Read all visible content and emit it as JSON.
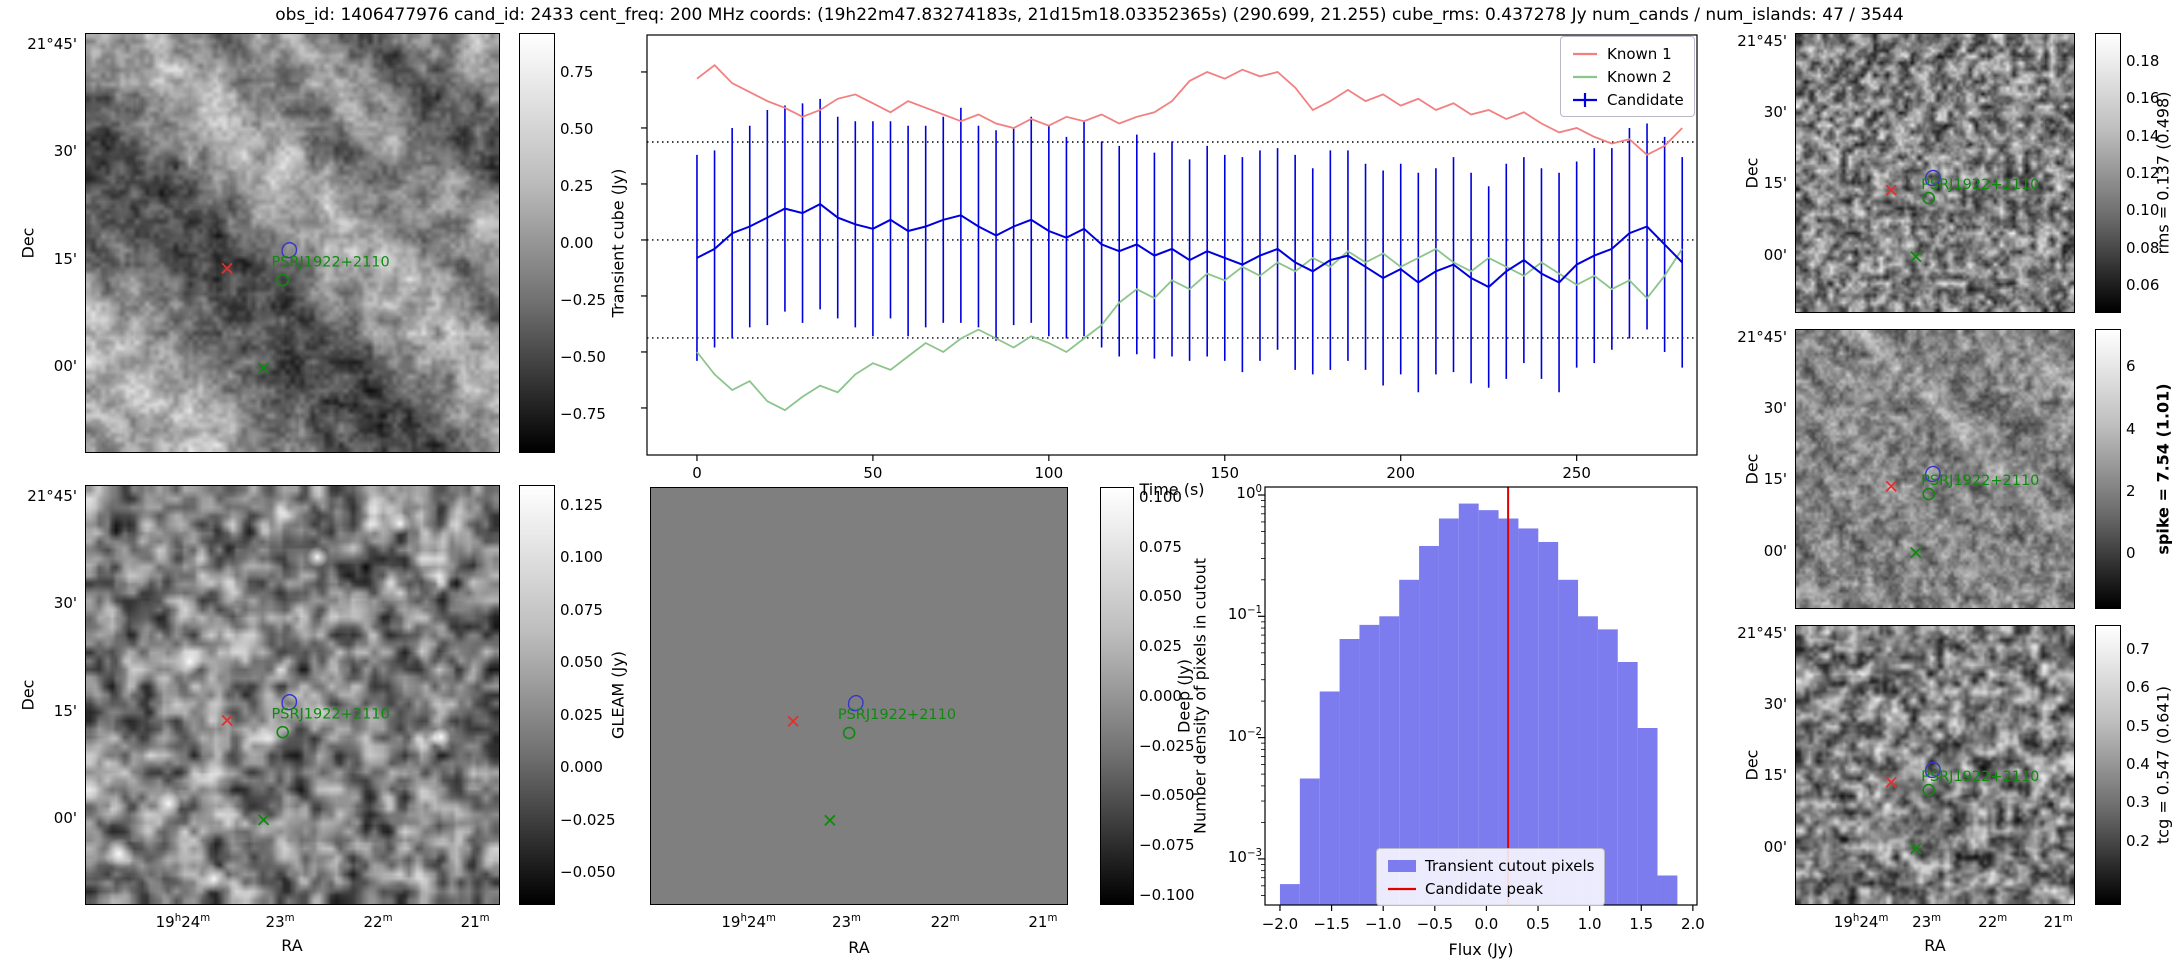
{
  "title": "obs_id: 1406477976 cand_id: 2433 cent_freq: 200 MHz coords: (19h22m47.83274183s, 21d15m18.03352365s) (290.699, 21.255) cube_rms: 0.437278 Jy num_cands / num_islands: 47 / 3544",
  "source_label": "PSRJ1922+2110",
  "axis": {
    "ra_label": "RA",
    "dec_label": "Dec",
    "ra_ticks": [
      "19h24m",
      "23m",
      "22m",
      "21m"
    ],
    "dec_ticks": [
      "21°45'",
      "30'",
      "15'",
      "00'"
    ]
  },
  "colorbars": {
    "transient_cube": {
      "label": "Transient cube (Jy)",
      "ticks": [
        "0.75",
        "0.50",
        "0.25",
        "0.00",
        "−0.25",
        "−0.50",
        "−0.75"
      ]
    },
    "gleam": {
      "label": "GLEAM (Jy)",
      "ticks": [
        "0.125",
        "0.100",
        "0.075",
        "0.050",
        "0.025",
        "0.000",
        "−0.025",
        "−0.050"
      ]
    },
    "deep": {
      "label": "Deep (Jy)",
      "ticks": [
        "0.100",
        "0.075",
        "0.050",
        "0.025",
        "0.000",
        "−0.025",
        "−0.050",
        "−0.075",
        "−0.100"
      ]
    },
    "rms": {
      "label": "rms = 0.137 (0.498)",
      "ticks": [
        "0.18",
        "0.16",
        "0.14",
        "0.12",
        "0.10",
        "0.08",
        "0.06"
      ]
    },
    "spike": {
      "label": "spike = 7.54 (1.01)",
      "ticks": [
        "6",
        "4",
        "2",
        "0"
      ]
    },
    "tcg": {
      "label": "tcg = 0.547 (0.641)",
      "ticks": [
        "0.7",
        "0.6",
        "0.5",
        "0.4",
        "0.3",
        "0.2"
      ]
    }
  },
  "chart_data": [
    {
      "type": "line",
      "title": "",
      "xlabel": "Time (s)",
      "ylabel": "Transient cube (Jy)",
      "xlim": [
        -14.2,
        284.2
      ],
      "ylim": [
        -0.96,
        0.915
      ],
      "xticks": [
        0,
        50,
        100,
        150,
        200,
        250
      ],
      "yticks_unlabeled": [
        0.75,
        0.5,
        0.25,
        0,
        -0.25,
        -0.5,
        -0.75
      ],
      "dotted_hlines": [
        0.437278,
        0,
        -0.437278
      ],
      "legend_position": "upper right",
      "x_start": 0,
      "x_step": 5,
      "series": [
        {
          "name": "Known 1",
          "color": "#f28080",
          "values": [
            0.72,
            0.78,
            0.7,
            0.66,
            0.62,
            0.59,
            0.55,
            0.58,
            0.63,
            0.65,
            0.61,
            0.57,
            0.62,
            0.59,
            0.56,
            0.53,
            0.56,
            0.52,
            0.5,
            0.54,
            0.51,
            0.55,
            0.53,
            0.56,
            0.52,
            0.55,
            0.57,
            0.62,
            0.71,
            0.75,
            0.72,
            0.76,
            0.73,
            0.75,
            0.68,
            0.58,
            0.62,
            0.67,
            0.62,
            0.65,
            0.6,
            0.63,
            0.58,
            0.61,
            0.56,
            0.58,
            0.54,
            0.57,
            0.52,
            0.48,
            0.5,
            0.46,
            0.43,
            0.45,
            0.38,
            0.42,
            0.5
          ]
        },
        {
          "name": "Known 2",
          "color": "#8cc48c",
          "values": [
            -0.5,
            -0.6,
            -0.67,
            -0.63,
            -0.72,
            -0.76,
            -0.7,
            -0.65,
            -0.68,
            -0.6,
            -0.55,
            -0.58,
            -0.52,
            -0.46,
            -0.5,
            -0.44,
            -0.4,
            -0.44,
            -0.48,
            -0.43,
            -0.46,
            -0.5,
            -0.44,
            -0.38,
            -0.28,
            -0.22,
            -0.26,
            -0.18,
            -0.22,
            -0.15,
            -0.18,
            -0.12,
            -0.16,
            -0.1,
            -0.14,
            -0.08,
            -0.12,
            -0.05,
            -0.1,
            -0.06,
            -0.12,
            -0.08,
            -0.04,
            -0.1,
            -0.14,
            -0.08,
            -0.12,
            -0.16,
            -0.1,
            -0.15,
            -0.2,
            -0.16,
            -0.22,
            -0.18,
            -0.26,
            -0.16,
            -0.04
          ]
        },
        {
          "name": "Candidate",
          "color": "#0000dd",
          "values": [
            -0.08,
            -0.04,
            0.03,
            0.06,
            0.1,
            0.14,
            0.12,
            0.16,
            0.1,
            0.07,
            0.05,
            0.09,
            0.04,
            0.06,
            0.09,
            0.11,
            0.06,
            0.02,
            0.06,
            0.09,
            0.04,
            0.01,
            0.05,
            -0.02,
            -0.05,
            -0.02,
            -0.07,
            -0.04,
            -0.09,
            -0.05,
            -0.08,
            -0.11,
            -0.07,
            -0.04,
            -0.1,
            -0.14,
            -0.09,
            -0.07,
            -0.12,
            -0.17,
            -0.13,
            -0.19,
            -0.14,
            -0.11,
            -0.17,
            -0.21,
            -0.14,
            -0.09,
            -0.15,
            -0.19,
            -0.11,
            -0.07,
            -0.04,
            0.03,
            0.06,
            -0.02,
            -0.1
          ],
          "yerr": [
            0.46,
            0.44,
            0.47,
            0.45,
            0.48,
            0.46,
            0.49,
            0.47,
            0.45,
            0.46,
            0.48,
            0.44,
            0.47,
            0.45,
            0.46,
            0.48,
            0.45,
            0.47,
            0.44,
            0.46,
            0.47,
            0.45,
            0.48,
            0.46,
            0.47,
            0.49,
            0.46,
            0.48,
            0.45,
            0.47,
            0.46,
            0.48,
            0.47,
            0.45,
            0.48,
            0.46,
            0.49,
            0.47,
            0.46,
            0.48,
            0.47,
            0.49,
            0.46,
            0.48,
            0.47,
            0.45,
            0.48,
            0.46,
            0.47,
            0.49,
            0.46,
            0.48,
            0.45,
            0.47,
            0.46,
            0.48,
            0.47
          ]
        }
      ]
    },
    {
      "type": "bar",
      "title": "",
      "xlabel": "Flux (Jy)",
      "ylabel": "Number density of pixels in cutout",
      "xlim": [
        -2.145,
        2.04
      ],
      "log_ylim": [
        -3.38,
        0.066
      ],
      "xticks": [
        -2.0,
        -1.5,
        -1.0,
        -0.5,
        0.0,
        0.5,
        1.0,
        1.5,
        2.0
      ],
      "ytick_exponents": [
        0,
        -1,
        -2,
        -3
      ],
      "bin_start": -2.0,
      "bin_width": 0.1925,
      "densities": [
        0.00062,
        0.0046,
        0.024,
        0.065,
        0.085,
        0.1,
        0.2,
        0.38,
        0.64,
        0.85,
        0.75,
        0.64,
        0.53,
        0.41,
        0.2,
        0.1,
        0.078,
        0.042,
        0.012,
        0.00073
      ],
      "candidate_peak": 0.21,
      "bar_color": "#7c7cef",
      "peak_color": "#e00000",
      "legend": [
        "Transient cutout pixels",
        "Candidate peak"
      ]
    }
  ]
}
